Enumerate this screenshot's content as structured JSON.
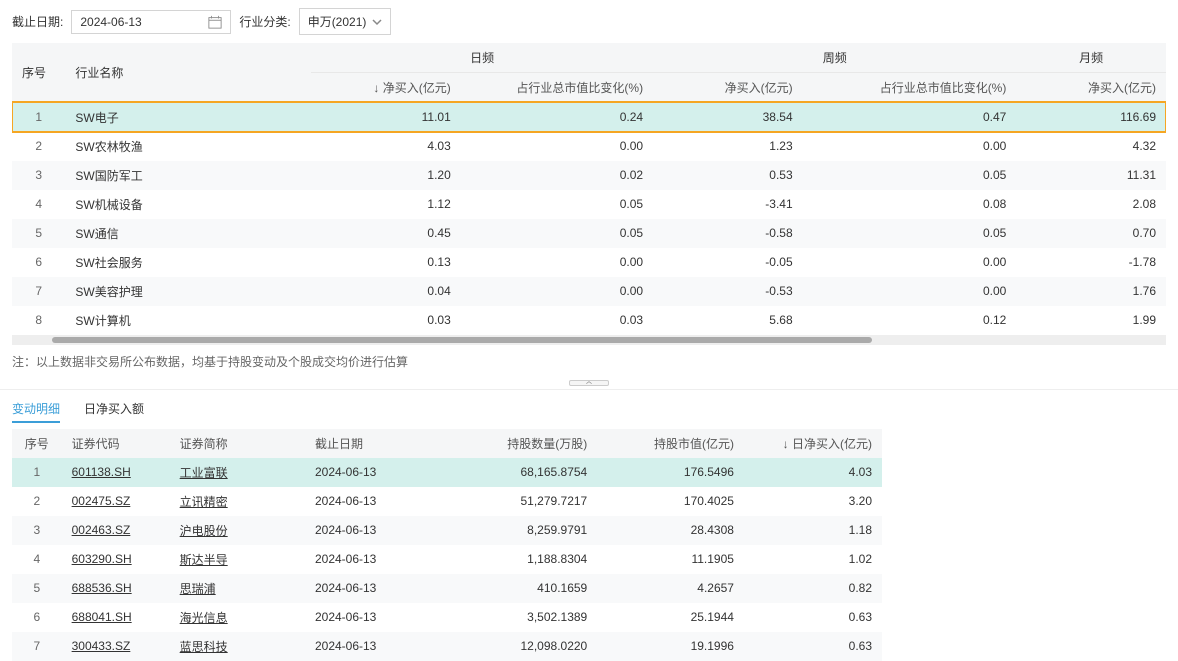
{
  "filters": {
    "date_label": "截止日期:",
    "date_value": "2024-06-13",
    "industry_label": "行业分类:",
    "industry_value": "申万(2021)"
  },
  "top_table": {
    "header_groups": {
      "seq": "序号",
      "name": "行业名称",
      "daily": "日频",
      "weekly": "周频",
      "monthly": "月频"
    },
    "sub_headers": {
      "daily_net": "↓ 净买入(亿元)",
      "daily_pct": "占行业总市值比变化(%)",
      "weekly_net": "净买入(亿元)",
      "weekly_pct": "占行业总市值比变化(%)",
      "monthly_net": "净买入(亿元)"
    },
    "rows": [
      {
        "n": "1",
        "name": "SW电子",
        "dn": "11.01",
        "dp": "0.24",
        "wn": "38.54",
        "wp": "0.47",
        "mn": "116.69",
        "highlight": true
      },
      {
        "n": "2",
        "name": "SW农林牧渔",
        "dn": "4.03",
        "dp": "0.00",
        "wn": "1.23",
        "wp": "0.00",
        "mn": "4.32"
      },
      {
        "n": "3",
        "name": "SW国防军工",
        "dn": "1.20",
        "dp": "0.02",
        "wn": "0.53",
        "wp": "0.05",
        "mn": "11.31"
      },
      {
        "n": "4",
        "name": "SW机械设备",
        "dn": "1.12",
        "dp": "0.05",
        "wn": "-3.41",
        "wp": "0.08",
        "mn": "2.08"
      },
      {
        "n": "5",
        "name": "SW通信",
        "dn": "0.45",
        "dp": "0.05",
        "wn": "-0.58",
        "wp": "0.05",
        "mn": "0.70"
      },
      {
        "n": "6",
        "name": "SW社会服务",
        "dn": "0.13",
        "dp": "0.00",
        "wn": "-0.05",
        "wp": "0.00",
        "mn": "-1.78"
      },
      {
        "n": "7",
        "name": "SW美容护理",
        "dn": "0.04",
        "dp": "0.00",
        "wn": "-0.53",
        "wp": "0.00",
        "mn": "1.76"
      },
      {
        "n": "8",
        "name": "SW计算机",
        "dn": "0.03",
        "dp": "0.03",
        "wn": "5.68",
        "wp": "0.12",
        "mn": "1.99"
      }
    ]
  },
  "note": "注：以上数据非交易所公布数据，均基于持股变动及个股成交均价进行估算",
  "tabs": {
    "t1": "变动明细",
    "t2": "日净买入额"
  },
  "detail_table": {
    "headers": {
      "seq": "序号",
      "code": "证券代码",
      "name": "证券简称",
      "date": "截止日期",
      "qty": "持股数量(万股)",
      "mv": "持股市值(亿元)",
      "net": "↓ 日净买入(亿元)"
    },
    "rows": [
      {
        "n": "1",
        "code": "601138.SH",
        "name": "工业富联",
        "date": "2024-06-13",
        "qty": "68,165.8754",
        "mv": "176.5496",
        "net": "4.03",
        "sel": true
      },
      {
        "n": "2",
        "code": "002475.SZ",
        "name": "立讯精密",
        "date": "2024-06-13",
        "qty": "51,279.7217",
        "mv": "170.4025",
        "net": "3.20"
      },
      {
        "n": "3",
        "code": "002463.SZ",
        "name": "沪电股份",
        "date": "2024-06-13",
        "qty": "8,259.9791",
        "mv": "28.4308",
        "net": "1.18"
      },
      {
        "n": "4",
        "code": "603290.SH",
        "name": "斯达半导",
        "date": "2024-06-13",
        "qty": "1,188.8304",
        "mv": "11.1905",
        "net": "1.02"
      },
      {
        "n": "5",
        "code": "688536.SH",
        "name": "思瑞浦",
        "date": "2024-06-13",
        "qty": "410.1659",
        "mv": "4.2657",
        "net": "0.82"
      },
      {
        "n": "6",
        "code": "688041.SH",
        "name": "海光信息",
        "date": "2024-06-13",
        "qty": "3,502.1389",
        "mv": "25.1944",
        "net": "0.63"
      },
      {
        "n": "7",
        "code": "300433.SZ",
        "name": "蓝思科技",
        "date": "2024-06-13",
        "qty": "12,098.0220",
        "mv": "19.1996",
        "net": "0.63"
      }
    ]
  }
}
